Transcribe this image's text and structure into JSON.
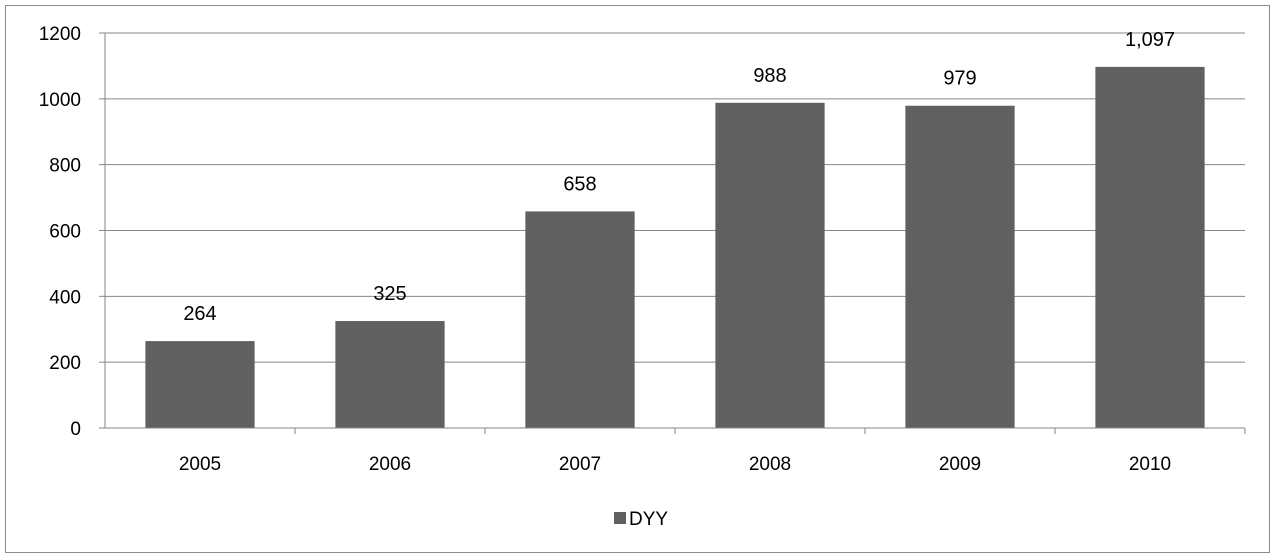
{
  "chart_data": {
    "type": "bar",
    "categories": [
      "2005",
      "2006",
      "2007",
      "2008",
      "2009",
      "2010"
    ],
    "series": [
      {
        "name": "DYY",
        "values": [
          264,
          325,
          658,
          988,
          979,
          1097
        ],
        "labels": [
          "264",
          "325",
          "658",
          "988",
          "979",
          "1,097"
        ]
      }
    ],
    "ylim": [
      0,
      1200
    ],
    "yticks": [
      "0",
      "200",
      "400",
      "600",
      "800",
      "1000",
      "1200"
    ],
    "grid": true,
    "legend_position": "bottom",
    "bar_color": "#606060",
    "grid_color": "#868686",
    "title": "",
    "xlabel": "",
    "ylabel": ""
  }
}
